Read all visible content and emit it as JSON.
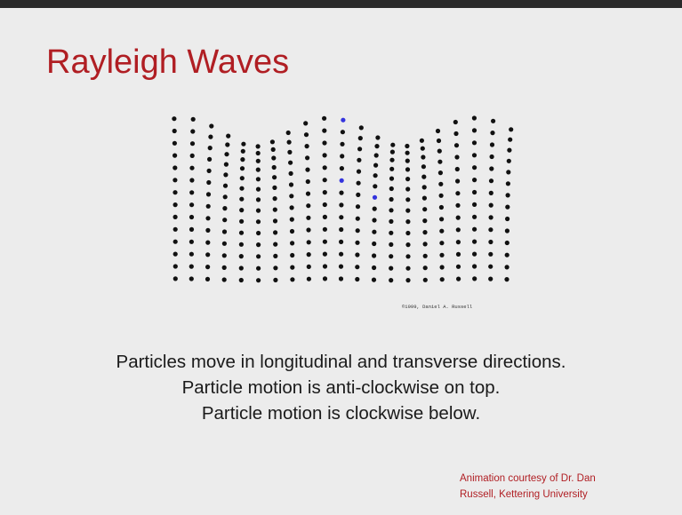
{
  "title": "Rayleigh Waves",
  "figure": {
    "credit_mark": "©1999, Daniel A. Russell"
  },
  "body": [
    "Particles move in longitudinal and transverse directions.",
    "Particle motion is anti-clockwise on top.",
    "Particle motion is clockwise below."
  ],
  "attribution": [
    "Animation courtesy of Dr. Dan",
    "Russell, Kettering University"
  ]
}
